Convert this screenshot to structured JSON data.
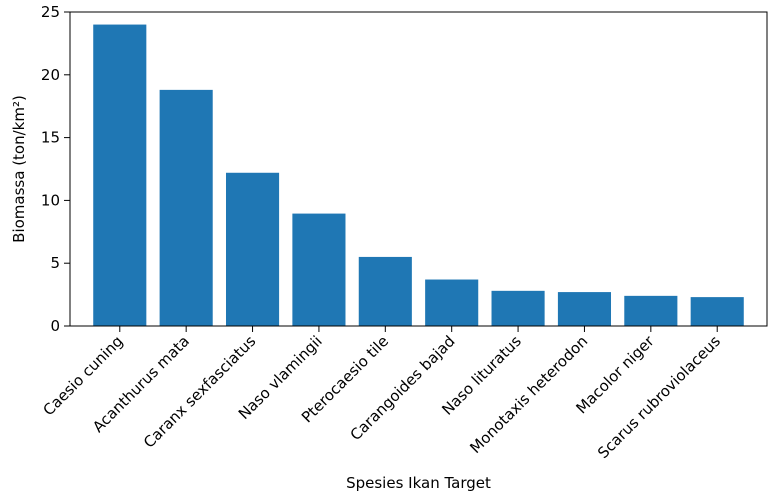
{
  "chart_data": {
    "type": "bar",
    "categories": [
      "Caesio cuning",
      "Acanthurus mata",
      "Caranx sexfasciatus",
      "Naso vlamingii",
      "Pterocaesio tile",
      "Carangoides bajad",
      "Naso lituratus",
      "Monotaxis heterodon",
      "Macolor niger",
      "Scarus rubroviolaceus"
    ],
    "values": [
      24.0,
      18.8,
      12.2,
      8.95,
      5.5,
      3.7,
      2.8,
      2.7,
      2.4,
      2.3
    ],
    "title": "",
    "xlabel": "Spesies Ikan Target",
    "ylabel": "Biomassa (ton/km²)",
    "ylim": [
      0,
      25
    ],
    "yticks": [
      0,
      5,
      10,
      15,
      20,
      25
    ],
    "grid": false,
    "colors": {
      "bar": "#1f77b4",
      "axis": "#000000"
    }
  }
}
